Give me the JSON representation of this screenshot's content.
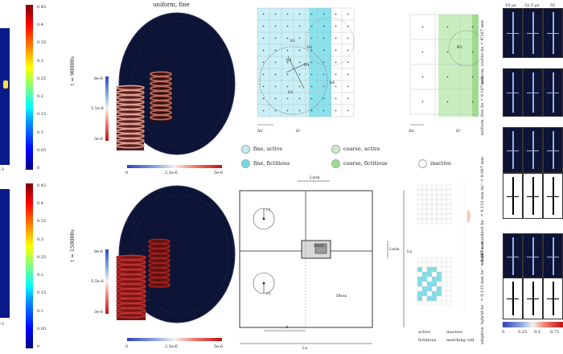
{
  "left_colorbars": {
    "ticks": [
      "0.45",
      "0.4",
      "0.35",
      "0.3",
      "0.25",
      "0.2",
      "0.15",
      "0.1",
      "0.05",
      "0"
    ],
    "top_time_label": "t = 90000s",
    "bottom_time_label": "t = 150000s",
    "left_fragment_top": "-3",
    "left_fragment_bottom": "-3"
  },
  "sim_panels": {
    "title": "uniform, fine",
    "vert_bar_ticks": [
      "8e-6",
      "5.5e-6",
      "3e-6"
    ],
    "horiz_bar_ticks": [
      "0",
      "2.5e-6",
      "5e-6"
    ]
  },
  "grid_diagram": {
    "labels": [
      "b1",
      "b2",
      "b3",
      "b4",
      "b5",
      "b6"
    ],
    "x_labels": [
      "Δx⁻",
      "Ω⁻"
    ],
    "right_label": "B1",
    "right_x_label": "Δx⁻",
    "right_omega": "Ω⁺"
  },
  "legend": {
    "items": [
      {
        "label": "fine, active",
        "color": "#bfeef5"
      },
      {
        "label": "coarse, active",
        "color": "#cdebc8"
      },
      {
        "label": "fine, fictitious",
        "color": "#6fdbea"
      },
      {
        "label": "coarse, fictitious",
        "color": "#9edb8f"
      },
      {
        "label": "inactive",
        "color": "#ffffff"
      }
    ]
  },
  "domain_diagram": {
    "label_top": "Lwin",
    "label_right": "Lwin",
    "label_left": "Lz",
    "label_bottom": "Lx",
    "label_inner": "Dbox",
    "label_window": "Dwin",
    "label_r": "r1",
    "label_r2": "r2",
    "label_d": "d"
  },
  "small_legend": {
    "items": [
      "active",
      "inactive",
      "fictitious",
      "matching cell"
    ]
  },
  "right_grid": {
    "col_headers": [
      "10 μs",
      "32.5 μs",
      "55"
    ],
    "row_labels": [
      "uniform, coarse Δx = 0.167 mm",
      "uniform, fine Δx = 0.167 mm",
      "adaptive, standard Δx⁻ = 0.133 mm Δx⁺ = 0.067 mm",
      "adaptive, hybrid Δx⁻ = 0.133 mm Δx⁺ = 0.067 mm"
    ],
    "bottom_bar_ticks": [
      "0",
      "0.25",
      "0.5",
      "0.75"
    ]
  },
  "colors": {
    "panel_bg": "#0d1436",
    "fine_active": "#bfeef5",
    "fine_fictitious": "#6fdbea",
    "coarse_active": "#cdebc8",
    "coarse_fictitious": "#9edb8f"
  }
}
